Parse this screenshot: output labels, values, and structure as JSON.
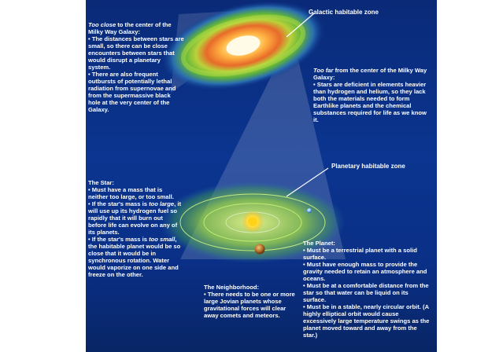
{
  "labels": {
    "galactic_zone": "Galactic habitable zone",
    "planetary_zone": "Planetary habitable zone"
  },
  "too_close": {
    "title_em": "Too close",
    "title_rest": " to the center of the Milky Way Galaxy:",
    "bullet1": "• The distances between stars are small, so there can be close encounters between stars that would disrupt a planetary system.",
    "bullet2": "• There are also frequent outbursts of potentially lethal radiation from supernovae and from the supermassive black hole at the very center of the Galaxy."
  },
  "too_far": {
    "title_em": "Too far",
    "title_rest": " from the center of the Milky Way Galaxy:",
    "bullet1": "• Stars are deficient in elements heavier than hydrogen and helium, so they lack both the materials needed to form Earthlike planets and the chemical substances required for life as we know it."
  },
  "star": {
    "title": "The Star:",
    "bullet1": "• Must have a mass that is neither too large, or too small.",
    "bullet2_pre": "• If the star's mass is ",
    "bullet2_em": "too large",
    "bullet2_post": ", it will use up its hydrogen fuel so rapidly that it will burn out before life can evolve on any of its planets.",
    "bullet3_pre": "• If the star's mass is ",
    "bullet3_em": "too small",
    "bullet3_post": ", the habitable planet would be so close that it would be in synchronous rotation. Water would vaporize on one side and freeze on the other."
  },
  "neighborhood": {
    "title": "The Neighborhood:",
    "bullet1": "• There needs to be one or more large Jovian planets whose gravitational forces will clear away comets and meteors."
  },
  "planet": {
    "title": "The Planet:",
    "bullet1": "• Must be a terrestrial planet with a solid surface.",
    "bullet2": "• Must have enough mass to provide the gravity needed to retain an atmosphere and oceans.",
    "bullet3": "• Must be at a comfortable distance from the star so that water can be liquid on its surface.",
    "bullet4": "• Must be in a stable, nearly circular orbit. (A highly elliptical orbit would cause excessively large temperature swings as the planet moved toward and away from the star.)"
  },
  "colors": {
    "background": "#0b3590",
    "galaxy_core": "#fff6b0",
    "habitable_ring": "#7fd23a",
    "star": "#ffd21a",
    "jovian_planet": "#b8742e",
    "terrestrial_planet": "#6fb0ff"
  }
}
